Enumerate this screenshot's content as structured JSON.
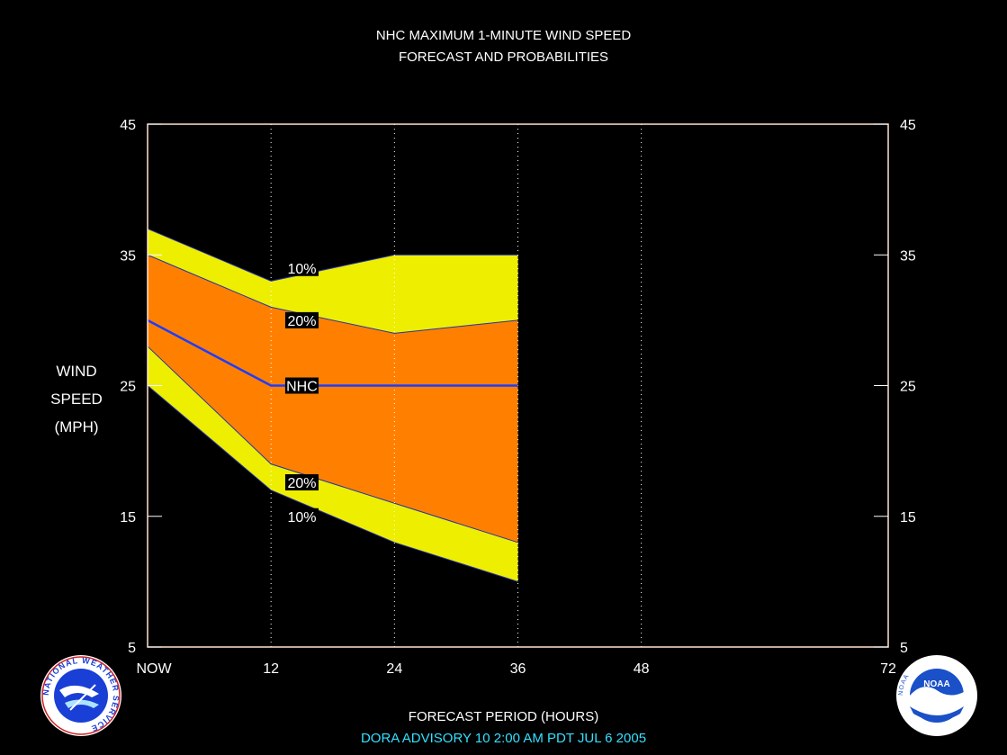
{
  "title": {
    "line1": "NHC MAXIMUM 1-MINUTE WIND SPEED",
    "line2": "FORECAST AND PROBABILITIES"
  },
  "y_axis_label": [
    "WIND",
    "SPEED",
    "(MPH)"
  ],
  "x_axis_label": "FORECAST PERIOD (HOURS)",
  "advisory_line": "DORA   ADVISORY  10  2:00  AM  PDT  JUL  6  2005",
  "logos": [
    {
      "name": "National Weather Service",
      "text": "NATIONAL WEATHER SERVICE"
    },
    {
      "name": "NOAA",
      "text": "NOAA"
    }
  ],
  "colors": {
    "background": "#000000",
    "frame": "#ffe4d0",
    "band_10": "#eeee00",
    "band_20": "#ff8000",
    "nhc_line": "#1e3cff",
    "band_edge": "#2233aa",
    "text": "#ffffff",
    "advisory_text": "#33e0ff"
  },
  "chart_data": {
    "type": "area",
    "x": [
      0,
      12,
      24,
      36
    ],
    "xticks": [
      0,
      12,
      24,
      36,
      48,
      72
    ],
    "xtick_labels": [
      "NOW",
      "12",
      "24",
      "36",
      "48",
      "72"
    ],
    "xlim": [
      0,
      72
    ],
    "ylim": [
      5,
      45
    ],
    "yticks": [
      5,
      15,
      25,
      35,
      45
    ],
    "xlabel": "FORECAST PERIOD (HOURS)",
    "ylabel": "WIND SPEED (MPH)",
    "grid": "dotted vertical at x ticks",
    "series": [
      {
        "name": "10%",
        "upper": [
          37,
          33,
          35,
          35
        ],
        "lower": [
          25,
          17,
          13,
          10
        ]
      },
      {
        "name": "20%",
        "upper": [
          35,
          31,
          29,
          30
        ],
        "lower": [
          28,
          19,
          16,
          13
        ]
      },
      {
        "name": "NHC",
        "values": [
          30,
          25,
          25,
          25
        ]
      }
    ],
    "labels": [
      {
        "text": "10%",
        "x": 15,
        "y": 34
      },
      {
        "text": "20%",
        "x": 15,
        "y": 30
      },
      {
        "text": "NHC",
        "x": 15,
        "y": 25
      },
      {
        "text": "20%",
        "x": 15,
        "y": 17.6
      },
      {
        "text": "10%",
        "x": 15,
        "y": 15
      }
    ]
  }
}
